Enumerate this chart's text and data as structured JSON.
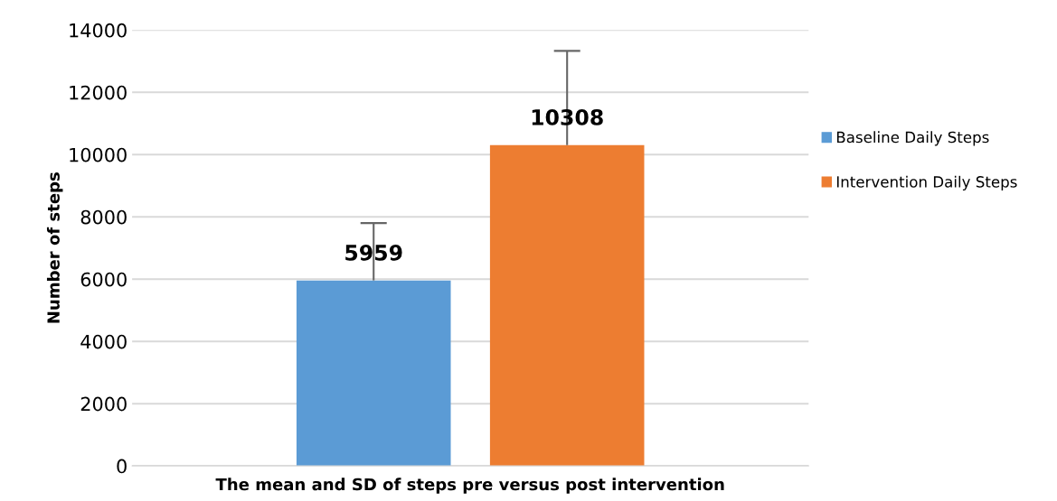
{
  "chart_data": {
    "type": "bar",
    "xlabel": "The mean and SD of steps pre versus post intervention",
    "ylabel": "Number of steps",
    "categories": [
      null
    ],
    "series": [
      {
        "name": "Baseline Daily Steps",
        "color": "#5b9bd5",
        "values": [
          5959
        ],
        "errors": [
          [
            5959,
            7800
          ]
        ]
      },
      {
        "name": "Intervention Daily Steps",
        "color": "#ed7d31",
        "values": [
          10308
        ],
        "errors": [
          [
            10308,
            13330
          ]
        ]
      }
    ],
    "ylim": [
      0,
      14000
    ],
    "yticks": [
      0,
      2000,
      4000,
      6000,
      8000,
      10000,
      12000,
      14000
    ],
    "grid": "y",
    "legend": "right",
    "data_labels": true
  }
}
